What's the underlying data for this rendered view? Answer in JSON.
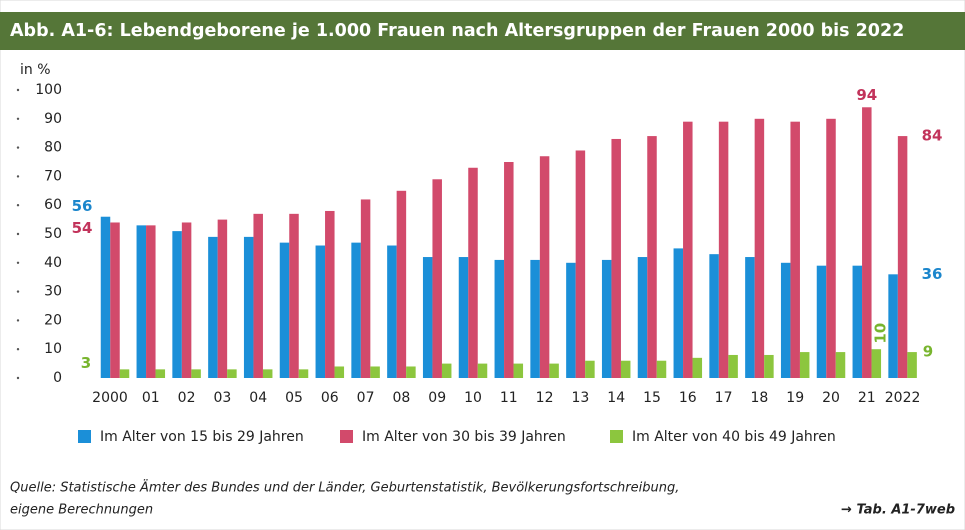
{
  "chart_data": {
    "type": "bar",
    "title": "Abb. A1-6:  Lebendgeborene je 1.000 Frauen nach Altersgruppen der Frauen 2000 bis 2022",
    "y_label": "in %",
    "categories": [
      "2000",
      "01",
      "02",
      "03",
      "04",
      "05",
      "06",
      "07",
      "08",
      "09",
      "10",
      "11",
      "12",
      "13",
      "14",
      "15",
      "16",
      "17",
      "18",
      "19",
      "20",
      "21",
      "2022"
    ],
    "series": [
      {
        "name": "Im Alter von 15 bis 29 Jahren",
        "color": "#1b8fd8",
        "label_color": "#1b86cc",
        "values": [
          56,
          53,
          51,
          49,
          49,
          47,
          46,
          47,
          46,
          42,
          42,
          41,
          41,
          40,
          41,
          42,
          45,
          43,
          42,
          40,
          39,
          39,
          36
        ]
      },
      {
        "name": "Im Alter von 30 bis 39 Jahren",
        "color": "#d24a6b",
        "label_color": "#c2335b",
        "values": [
          54,
          53,
          54,
          55,
          57,
          57,
          58,
          62,
          65,
          69,
          73,
          75,
          77,
          79,
          83,
          84,
          89,
          89,
          90,
          89,
          90,
          94,
          84
        ]
      },
      {
        "name": "Im Alter von 40 bis 49 Jahren",
        "color": "#8cc63e",
        "label_color": "#78b52e",
        "values": [
          3,
          3,
          3,
          3,
          3,
          3,
          4,
          4,
          4,
          5,
          5,
          5,
          5,
          6,
          6,
          6,
          7,
          8,
          8,
          9,
          9,
          10,
          9
        ]
      }
    ],
    "ylim": [
      0,
      100
    ],
    "yticks": [
      0,
      10,
      20,
      30,
      40,
      50,
      60,
      70,
      80,
      90,
      100
    ],
    "grid": false,
    "source": [
      "Quelle: Statistische Ämter des Bundes und der Länder, Geburtenstatistik, Bevölkerungsfortschreibung,",
      "eigene Berechnungen"
    ],
    "reference": "→ Tab. A1-7web"
  }
}
